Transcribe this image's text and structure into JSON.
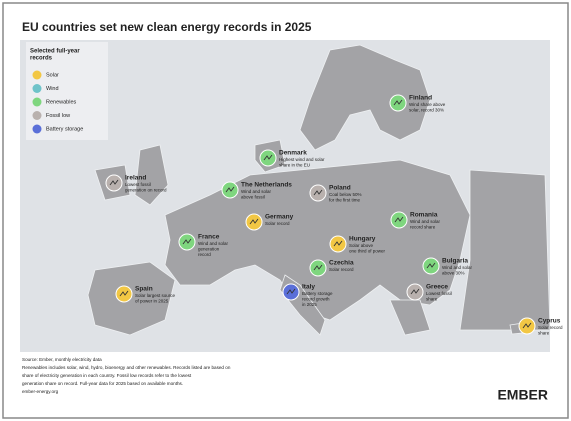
{
  "title": "EU countries set new clean energy records in 2025",
  "legend": {
    "title": [
      "Selected full-year",
      "records"
    ],
    "items": [
      {
        "label": "Solar",
        "color": "#f2c744"
      },
      {
        "label": "Wind",
        "color": "#6fc3c9"
      },
      {
        "label": "Renewables",
        "color": "#7fd67f"
      },
      {
        "label": "Fossil low",
        "color": "#b9b1ae"
      },
      {
        "label": "Battery storage",
        "color": "#5a6fd8"
      }
    ]
  },
  "countries": [
    {
      "name": "Finland",
      "record": "Renewables",
      "text": [
        "Wind share above",
        "solar, record 30%"
      ]
    },
    {
      "name": "Denmark",
      "record": "Renewables",
      "text": [
        "Highest wind and solar",
        "share in the EU"
      ]
    },
    {
      "name": "Ireland",
      "record": "Fossil low",
      "text": [
        "Lowest fossil",
        "generation on record"
      ]
    },
    {
      "name": "The Netherlands",
      "record": "Renewables",
      "text": [
        "Wind and solar",
        "above fossil"
      ]
    },
    {
      "name": "Poland",
      "record": "Fossil low",
      "text": [
        "Coal below 50%",
        "for the first time"
      ]
    },
    {
      "name": "Germany",
      "record": "Solar",
      "text": [
        "Solar record"
      ]
    },
    {
      "name": "Romania",
      "record": "Renewables",
      "text": [
        "Wind and solar",
        "record share"
      ]
    },
    {
      "name": "France",
      "record": "Renewables",
      "text": [
        "Wind and solar",
        "generation",
        "record"
      ]
    },
    {
      "name": "Hungary",
      "record": "Solar",
      "text": [
        "Solar above",
        "one third of power"
      ]
    },
    {
      "name": "Bulgaria",
      "record": "Renewables",
      "text": [
        "Wind and solar",
        "above 30%"
      ]
    },
    {
      "name": "Czechia",
      "record": "Renewables",
      "text": [
        "Solar record"
      ]
    },
    {
      "name": "Spain",
      "record": "Solar",
      "text": [
        "Solar largest source",
        "of power in 2025"
      ]
    },
    {
      "name": "Italy",
      "record": "Battery storage",
      "text": [
        "Battery storage",
        "record growth",
        "in 2025"
      ]
    },
    {
      "name": "Greece",
      "record": "Fossil low",
      "text": [
        "Lowest fossil",
        "share"
      ]
    },
    {
      "name": "Cyprus",
      "record": "Solar",
      "text": [
        "Solar record",
        "share"
      ]
    }
  ],
  "footer": [
    "Source: Ember, monthly electricity data",
    "Renewables includes solar, wind, hydro, bioenergy and other renewables. Records listed are based on",
    "share of electricity generation in each country. Fossil low records refer to the lowest",
    "generation share on record. Full-year data for 2025 based on available months.",
    "ember-energy.org"
  ],
  "logo": "EMBER"
}
